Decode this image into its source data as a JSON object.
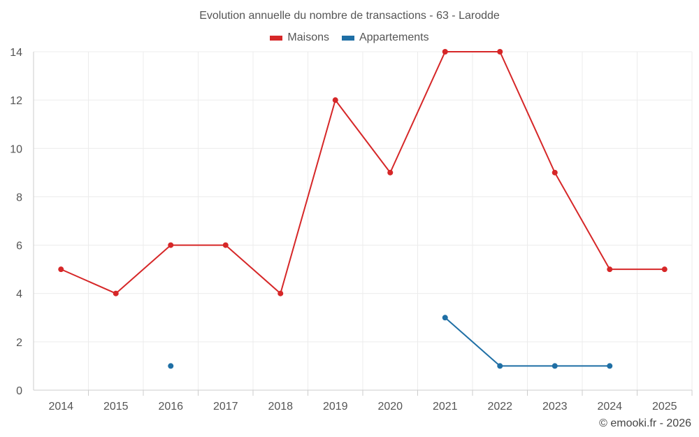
{
  "chart_data": {
    "type": "line",
    "title": "Evolution annuelle du nombre de transactions - 63 - Larodde",
    "categories": [
      "2014",
      "2015",
      "2016",
      "2017",
      "2018",
      "2019",
      "2020",
      "2021",
      "2022",
      "2023",
      "2024",
      "2025"
    ],
    "series": [
      {
        "name": "Maisons",
        "color": "#d62728",
        "values": [
          5,
          4,
          6,
          6,
          4,
          12,
          9,
          14,
          14,
          9,
          5,
          5
        ]
      },
      {
        "name": "Appartements",
        "color": "#1f6fa5",
        "values": [
          null,
          null,
          1,
          null,
          null,
          null,
          null,
          3,
          1,
          1,
          1,
          null
        ]
      }
    ],
    "ylim": [
      0,
      14
    ],
    "yticks": [
      0,
      2,
      4,
      6,
      8,
      10,
      12,
      14
    ],
    "xlabel": "",
    "ylabel": "",
    "grid": true,
    "legend_position": "top-center"
  },
  "credit": "© emooki.fr - 2026"
}
